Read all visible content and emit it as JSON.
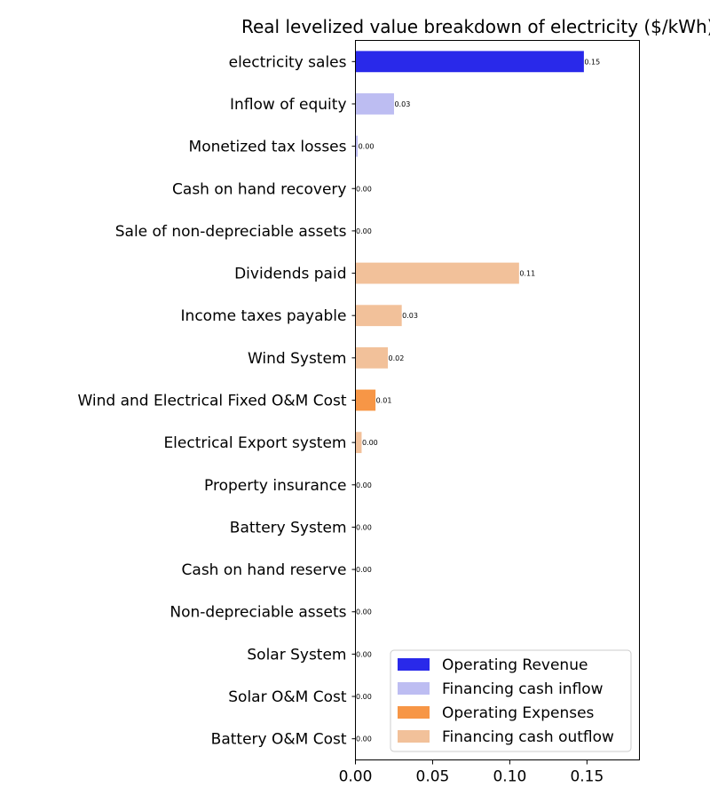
{
  "chart_data": {
    "type": "bar",
    "orientation": "horizontal",
    "title": "Real levelized value breakdown of electricity ($/kWh)",
    "xlabel": "",
    "ylabel": "",
    "xlim": [
      0,
      0.184
    ],
    "x_ticks": [
      0.0,
      0.05,
      0.1,
      0.15
    ],
    "x_tick_labels": [
      "0.00",
      "0.05",
      "0.10",
      "0.15"
    ],
    "grid": false,
    "legend_position": "bottom-right",
    "categories": [
      "electricity sales",
      "Inflow of equity",
      "Monetized tax losses",
      "Cash on hand recovery",
      "Sale of non-depreciable assets",
      "Dividends paid",
      "Income taxes payable",
      "Wind System",
      "Wind and Electrical Fixed O&M Cost",
      "Electrical Export system",
      "Property insurance",
      "Battery System",
      "Cash on hand reserve",
      "Non-depreciable assets",
      "Solar System",
      "Solar O&M Cost",
      "Battery O&M Cost"
    ],
    "values": [
      0.148,
      0.025,
      0.0015,
      0.0,
      0.0,
      0.106,
      0.03,
      0.021,
      0.013,
      0.004,
      0.0,
      0.0,
      0.0,
      0.0,
      0.0,
      0.0,
      0.0
    ],
    "value_labels": [
      "0.15",
      "0.03",
      "0.00",
      "0.00",
      "0.00",
      "0.11",
      "0.03",
      "0.02",
      "0.01",
      "0.00",
      "0.00",
      "0.00",
      "0.00",
      "0.00",
      "0.00",
      "0.00",
      "0.00"
    ],
    "groups": [
      "Operating Revenue",
      "Financing cash inflow",
      "Financing cash inflow",
      "Financing cash inflow",
      "Financing cash inflow",
      "Financing cash outflow",
      "Financing cash outflow",
      "Financing cash outflow",
      "Operating Expenses",
      "Financing cash outflow",
      "Operating Expenses",
      "Financing cash outflow",
      "Financing cash outflow",
      "Financing cash outflow",
      "Financing cash outflow",
      "Operating Expenses",
      "Operating Expenses"
    ],
    "legend": [
      {
        "name": "Operating Revenue",
        "color": "#2929ea"
      },
      {
        "name": "Financing cash inflow",
        "color": "#bdbdf2"
      },
      {
        "name": "Operating Expenses",
        "color": "#f79646"
      },
      {
        "name": "Financing cash outflow",
        "color": "#f2c19a"
      }
    ]
  }
}
